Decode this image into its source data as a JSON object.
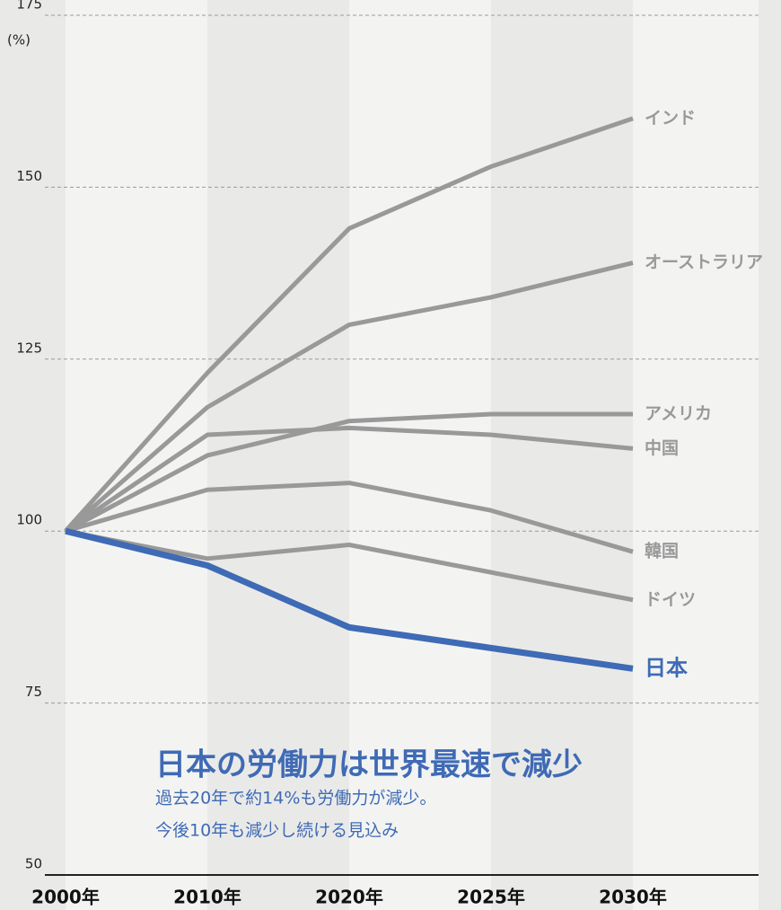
{
  "chart_data": {
    "type": "line",
    "y_label": "(%)",
    "categories": [
      "2000年",
      "2010年",
      "2020年",
      "2025年",
      "2030年"
    ],
    "series": [
      {
        "name": "インド",
        "color": "#999999",
        "values": [
          100,
          123,
          144,
          153,
          160
        ]
      },
      {
        "name": "オーストラリア",
        "color": "#999999",
        "values": [
          100,
          118,
          130,
          134,
          139
        ]
      },
      {
        "name": "アメリカ",
        "color": "#999999",
        "values": [
          100,
          111,
          116,
          117,
          117
        ]
      },
      {
        "name": "中国",
        "color": "#999999",
        "values": [
          100,
          114,
          115,
          114,
          112
        ]
      },
      {
        "name": "韓国",
        "color": "#999999",
        "values": [
          100,
          106,
          107,
          103,
          97
        ]
      },
      {
        "name": "ドイツ",
        "color": "#999999",
        "values": [
          100,
          96,
          98,
          94,
          90
        ]
      },
      {
        "name": "日本",
        "color": "#3f6ab5",
        "values": [
          100,
          95,
          86,
          83,
          80
        ]
      }
    ],
    "ylim": [
      50,
      175
    ],
    "yticks": [
      50,
      75,
      100,
      125,
      150,
      175
    ],
    "grid": true,
    "annotation": {
      "title": "日本の労働力は世界最速で減少",
      "lines": [
        "過去20年で約14%も労働力が減少。",
        "今後10年も減少し続ける見込み"
      ]
    }
  }
}
